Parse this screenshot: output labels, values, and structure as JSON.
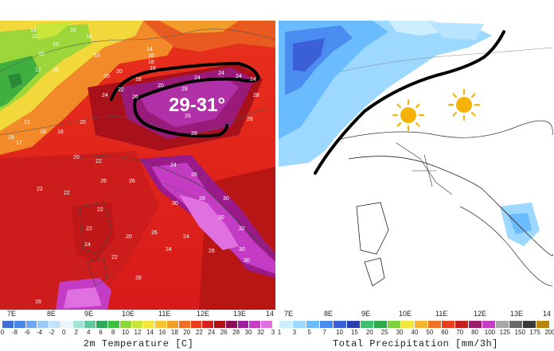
{
  "left_map": {
    "overlay_label": "29-31°",
    "station_values": [
      "14",
      "12",
      "10",
      "14",
      "10",
      "10",
      "12",
      "10",
      "14",
      "16",
      "18",
      "16",
      "16",
      "20",
      "20",
      "18",
      "22",
      "20",
      "24",
      "26",
      "28",
      "24",
      "24",
      "24",
      "24",
      "22",
      "26",
      "28",
      "26",
      "28",
      "18",
      "17",
      "16",
      "16",
      "12",
      "20",
      "22",
      "22",
      "20",
      "22",
      "26",
      "26",
      "24",
      "26",
      "28",
      "30",
      "30",
      "30",
      "32",
      "24",
      "22",
      "22",
      "24",
      "22",
      "20",
      "26",
      "30",
      "30",
      "26",
      "24",
      "28",
      "16"
    ],
    "axis_ticks": [
      "7E",
      "8E",
      "9E",
      "10E",
      "11E",
      "12E",
      "13E",
      "14"
    ],
    "legend": {
      "title": "2m Temperature [C]",
      "ticks": [
        "0",
        "-8",
        "-6",
        "-4",
        "-2",
        "0",
        "2",
        "4",
        "6",
        "8",
        "10",
        "12",
        "14",
        "16",
        "18",
        "20",
        "22",
        "24",
        "26",
        "28",
        "30",
        "32",
        "3"
      ],
      "colors": [
        "#3f6fd6",
        "#4a86e8",
        "#6fa8f0",
        "#9cc8f5",
        "#c5e3f8",
        "#e8f6fb",
        "#a6e3d5",
        "#60c9a0",
        "#2da85c",
        "#3fbf3f",
        "#8fd63a",
        "#c8e63a",
        "#f2e83a",
        "#f5c431",
        "#f29d2a",
        "#ef6f24",
        "#e8401c",
        "#d61f1f",
        "#b01414",
        "#8a0e5a",
        "#a01fa0",
        "#c43cc4",
        "#e070e0"
      ]
    }
  },
  "right_map": {
    "axis_ticks": [
      "7E",
      "8E",
      "9E",
      "10E",
      "11E",
      "12E",
      "13E",
      "14"
    ],
    "icons": [
      "sun-icon",
      "sun-icon"
    ],
    "legend": {
      "title": "Total Precipitation [mm/3h]",
      "ticks": [
        "1",
        "3",
        "5",
        "7",
        "10",
        "15",
        "20",
        "25",
        "30",
        "40",
        "50",
        "60",
        "70",
        "80",
        "100",
        "125",
        "150",
        "175",
        "200"
      ],
      "colors": [
        "#cdeeff",
        "#9cd8ff",
        "#6bbcff",
        "#4a8cf0",
        "#3a5fd6",
        "#2a3fb0",
        "#3fbf6f",
        "#2da84a",
        "#7fd23a",
        "#f2e83a",
        "#f5b431",
        "#ef7324",
        "#e8401c",
        "#c41e1e",
        "#9c1e6a",
        "#c43cc4",
        "#a8a8a8",
        "#6a6a6a",
        "#3a3a3a",
        "#b8860b"
      ]
    }
  }
}
